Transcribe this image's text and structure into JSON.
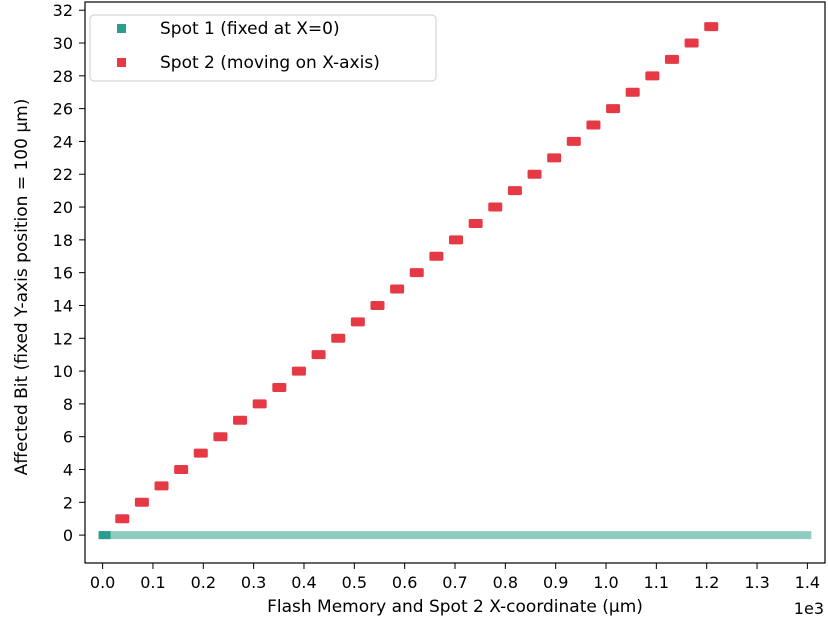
{
  "chart_data": {
    "type": "scatter",
    "xlabel": "Flash Memory and Spot 2 X-coordinate (μm)",
    "ylabel": "Affected Bit (fixed Y-axis position = 100 μm)",
    "x_scale_label": "1e3",
    "xlim": [
      -0.035,
      1.435
    ],
    "ylim": [
      -1.7,
      32.5
    ],
    "x_ticks": [
      0.0,
      0.1,
      0.2,
      0.3,
      0.4,
      0.5,
      0.6,
      0.7,
      0.8,
      0.9,
      1.0,
      1.1,
      1.2,
      1.3,
      1.4
    ],
    "x_tick_labels": [
      "0.0",
      "0.1",
      "0.2",
      "0.3",
      "0.4",
      "0.5",
      "0.6",
      "0.7",
      "0.8",
      "0.9",
      "1.0",
      "1.1",
      "1.2",
      "1.3",
      "1.4"
    ],
    "y_ticks": [
      0,
      2,
      4,
      6,
      8,
      10,
      12,
      14,
      16,
      18,
      20,
      22,
      24,
      26,
      28,
      30,
      32
    ],
    "y_tick_labels": [
      "0",
      "2",
      "4",
      "6",
      "8",
      "10",
      "12",
      "14",
      "16",
      "18",
      "20",
      "22",
      "24",
      "26",
      "28",
      "30",
      "32"
    ],
    "grid": false,
    "legend_position": "top-left",
    "series": [
      {
        "name": "Spot 1 (fixed at X=0)",
        "color": "#2a9d8f",
        "band_color": "#8fcbbf",
        "marker": "square",
        "x_range": [
          0.0,
          1.4
        ],
        "y": 0
      },
      {
        "name": "Spot 2 (moving on X-axis)",
        "color": "#e63946",
        "marker": "square",
        "x": [
          0.039,
          0.078,
          0.117,
          0.156,
          0.195,
          0.234,
          0.273,
          0.312,
          0.351,
          0.39,
          0.429,
          0.468,
          0.507,
          0.546,
          0.585,
          0.624,
          0.663,
          0.702,
          0.741,
          0.78,
          0.819,
          0.858,
          0.897,
          0.936,
          0.975,
          1.014,
          1.053,
          1.092,
          1.131,
          1.17,
          1.209
        ],
        "y": [
          1,
          2,
          3,
          4,
          5,
          6,
          7,
          8,
          9,
          10,
          11,
          12,
          13,
          14,
          15,
          16,
          17,
          18,
          19,
          20,
          21,
          22,
          23,
          24,
          25,
          26,
          27,
          28,
          29,
          30,
          31
        ]
      }
    ]
  }
}
